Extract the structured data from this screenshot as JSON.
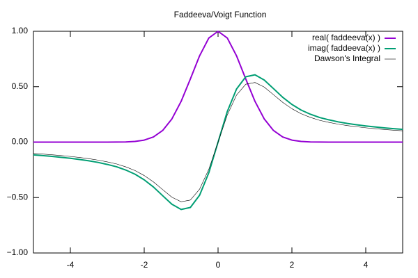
{
  "chart_data": {
    "type": "line",
    "title": "Faddeeva/Voigt Function",
    "x": [
      -5,
      -4.75,
      -4.5,
      -4.25,
      -4,
      -3.75,
      -3.5,
      -3.25,
      -3,
      -2.75,
      -2.5,
      -2.25,
      -2,
      -1.75,
      -1.5,
      -1.25,
      -1,
      -0.75,
      -0.5,
      -0.25,
      0,
      0.25,
      0.5,
      0.75,
      1,
      1.25,
      1.5,
      1.75,
      2,
      2.25,
      2.5,
      2.75,
      3,
      3.25,
      3.5,
      3.75,
      4,
      4.25,
      4.5,
      4.75,
      5
    ],
    "series": [
      {
        "name": "real( faddeeva(x) )",
        "color": "#9400d3",
        "width": 2,
        "values": [
          0,
          0,
          0,
          0,
          0,
          0,
          0,
          0,
          0.0001,
          0.0005,
          0.0019,
          0.0063,
          0.0183,
          0.0468,
          0.1054,
          0.2096,
          0.3679,
          0.5698,
          0.7788,
          0.9394,
          1,
          0.9394,
          0.7788,
          0.5698,
          0.3679,
          0.2096,
          0.1054,
          0.0468,
          0.0183,
          0.0063,
          0.0019,
          0.0005,
          0.0001,
          0,
          0,
          0,
          0,
          0,
          0,
          0,
          0
        ]
      },
      {
        "name": "imag( faddeeva(x) )",
        "color": "#009e73",
        "width": 2,
        "values": [
          -0.1152,
          -0.1216,
          -0.1287,
          -0.1368,
          -0.1459,
          -0.1564,
          -0.1687,
          -0.1831,
          -0.2012,
          -0.2221,
          -0.2517,
          -0.2892,
          -0.34,
          -0.4049,
          -0.4832,
          -0.5604,
          -0.6072,
          -0.5894,
          -0.4789,
          -0.2762,
          0,
          0.2762,
          0.4789,
          0.5894,
          0.6072,
          0.5604,
          0.4832,
          0.4049,
          0.34,
          0.2892,
          0.2517,
          0.2221,
          0.2012,
          0.1831,
          0.1687,
          0.1564,
          0.1459,
          0.1368,
          0.1287,
          0.1216,
          0.1152
        ]
      },
      {
        "name": "Dawson's Integral",
        "color": "#000000",
        "width": 0.6,
        "values": [
          -0.1021,
          -0.1078,
          -0.1141,
          -0.1212,
          -0.1293,
          -0.1386,
          -0.1495,
          -0.1623,
          -0.1783,
          -0.1968,
          -0.2231,
          -0.2563,
          -0.3013,
          -0.3588,
          -0.4282,
          -0.4966,
          -0.5381,
          -0.5223,
          -0.4244,
          -0.2448,
          0,
          0.2448,
          0.4244,
          0.5223,
          0.5381,
          0.4966,
          0.4282,
          0.3588,
          0.3013,
          0.2563,
          0.2231,
          0.1968,
          0.1783,
          0.1623,
          0.1495,
          0.1386,
          0.1293,
          0.1212,
          0.1141,
          0.1078,
          0.1021
        ]
      }
    ],
    "xlim": [
      -5,
      5
    ],
    "ylim": [
      -1,
      1
    ],
    "xticks": [
      -4,
      -2,
      0,
      2,
      4
    ],
    "yticks": [
      {
        "value": -1,
        "label": "−1.00"
      },
      {
        "value": -0.5,
        "label": "−0.50"
      },
      {
        "value": 0,
        "label": "0.00"
      },
      {
        "value": 0.5,
        "label": "0.50"
      },
      {
        "value": 1,
        "label": "1.00"
      }
    ],
    "legend": "top-right"
  }
}
